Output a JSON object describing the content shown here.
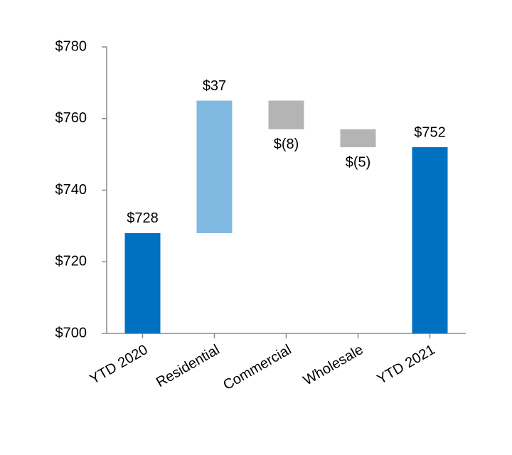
{
  "chart_data": {
    "type": "waterfall",
    "categories": [
      "YTD 2020",
      "Residential",
      "Commercial",
      "Wholesale",
      "YTD 2021"
    ],
    "values": [
      728,
      37,
      -8,
      -5,
      752
    ],
    "value_labels": [
      "$728",
      "$37",
      "$(8)",
      "$(5)",
      "$752"
    ],
    "totals": [
      true,
      false,
      false,
      false,
      true
    ],
    "colors": [
      "#0070c0",
      "#80b9e2",
      "#b4b4b4",
      "#b4b4b4",
      "#0070c0"
    ],
    "ylim": [
      700,
      780
    ],
    "yticks": [
      {
        "value": 700,
        "label": "$700"
      },
      {
        "value": 720,
        "label": "$720"
      },
      {
        "value": 740,
        "label": "$740"
      },
      {
        "value": 760,
        "label": "$760"
      },
      {
        "value": 780,
        "label": "$780"
      }
    ]
  }
}
